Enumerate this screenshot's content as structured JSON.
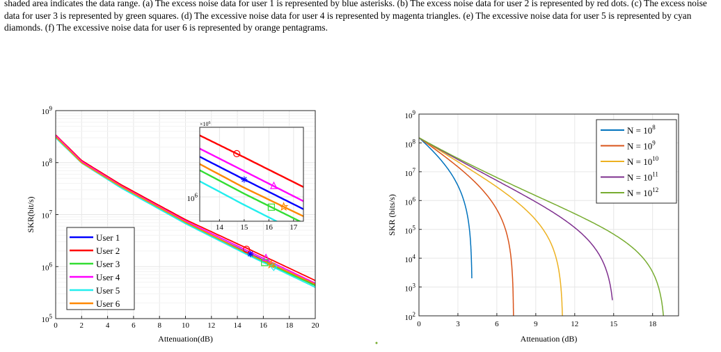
{
  "caption": "shaded area indicates the data range. (a) The excess noise data for user 1 is represented by blue asterisks. (b) The excess noise data for user 2 is represented by red dots. (c) The excess noise data for user 3 is represented by green squares. (d) The excessive noise data for user 4 is represented by magenta triangles. (e) The excessive noise data for user 5 is represented by cyan diamonds. (f) The excessive noise data for user 6 is represented by orange pentagrams.",
  "chart_data": [
    {
      "type": "line",
      "xlabel": "Attenuation(dB)",
      "ylabel": "SKR(bit/s)",
      "xlim": [
        0,
        20
      ],
      "ylim": [
        100000,
        1000000000
      ],
      "yscale": "log",
      "xticks": [
        0,
        2,
        4,
        6,
        8,
        10,
        12,
        14,
        16,
        18,
        20
      ],
      "yticks": [
        {
          "value": 100000,
          "label": "10"
        },
        {
          "value": 1000000,
          "label": "10"
        },
        {
          "value": 10000000,
          "label": "10"
        },
        {
          "value": 100000000,
          "label": "10"
        },
        {
          "value": 1000000000,
          "label": "10"
        }
      ],
      "ytick_exponents": [
        "5",
        "6",
        "7",
        "8",
        "9"
      ],
      "grid": true,
      "legend_position": "lower-left",
      "series": [
        {
          "name": "User 1",
          "color": "#0000ff",
          "x": [
            0,
            2,
            5,
            10,
            15,
            20
          ],
          "y": [
            320000000,
            100000000,
            35000000,
            7000000,
            1750000,
            450000
          ],
          "marker": "asterisk",
          "marker_x": 15,
          "marker_y": 1750000
        },
        {
          "name": "User 2",
          "color": "#ff0000",
          "x": [
            0,
            2,
            5,
            10,
            15,
            20
          ],
          "y": [
            340000000,
            110000000,
            38000000,
            8000000,
            2100000,
            540000
          ],
          "marker": "circle",
          "marker_x": 14.7,
          "marker_y": 2150000
        },
        {
          "name": "User 3",
          "color": "#33dd33",
          "x": [
            0,
            2,
            5,
            10,
            15,
            20
          ],
          "y": [
            310000000,
            100000000,
            34000000,
            6900000,
            1650000,
            430000
          ],
          "marker": "square",
          "marker_x": 16.1,
          "marker_y": 1200000
        },
        {
          "name": "User 4",
          "color": "#ff00ff",
          "x": [
            0,
            2,
            5,
            10,
            15,
            20
          ],
          "y": [
            330000000,
            105000000,
            36000000,
            7500000,
            1900000,
            480000
          ],
          "marker": "triangle",
          "marker_x": 16.2,
          "marker_y": 1450000
        },
        {
          "name": "User 5",
          "color": "#22eeee",
          "x": [
            0,
            2,
            5,
            10,
            15,
            20
          ],
          "y": [
            300000000,
            98000000,
            33000000,
            6700000,
            1580000,
            400000
          ],
          "marker": "diamond",
          "marker_x": 16.8,
          "marker_y": 1000000
        },
        {
          "name": "User 6",
          "color": "#ff8800",
          "x": [
            0,
            2,
            5,
            10,
            15,
            20
          ],
          "y": [
            315000000,
            100000000,
            35000000,
            7200000,
            1700000,
            460000
          ],
          "marker": "pentagram",
          "marker_x": 16.6,
          "marker_y": 1100000
        }
      ],
      "inset": {
        "exponent_label": "×10",
        "exponent": "6",
        "xlim": [
          13.2,
          17.4
        ],
        "xticks": [
          14,
          15,
          16,
          17
        ],
        "ytick_label": "10",
        "ytick_exponent": "6"
      }
    },
    {
      "type": "line",
      "xlabel": "Attenuation (dB)",
      "ylabel": "SKR (bits/s)",
      "xlim": [
        0,
        20
      ],
      "ylim": [
        100,
        1000000000
      ],
      "yscale": "log",
      "xticks": [
        0,
        3,
        6,
        9,
        12,
        15,
        18
      ],
      "yticks": [
        {
          "value": 100,
          "label": "10"
        },
        {
          "value": 1000,
          "label": "10"
        },
        {
          "value": 10000,
          "label": "10"
        },
        {
          "value": 100000,
          "label": "10"
        },
        {
          "value": 1000000,
          "label": "10"
        },
        {
          "value": 10000000,
          "label": "10"
        },
        {
          "value": 100000000,
          "label": "10"
        },
        {
          "value": 1000000000,
          "label": "10"
        }
      ],
      "ytick_exponents": [
        "2",
        "3",
        "4",
        "5",
        "6",
        "7",
        "8",
        "9"
      ],
      "grid": true,
      "legend_position": "top-right",
      "series": [
        {
          "name": "N = 10",
          "name_exponent": "8",
          "color": "#0072bd",
          "cutoff": 4.1,
          "end_value": 2000
        },
        {
          "name": "N = 10",
          "name_exponent": "9",
          "color": "#d95319",
          "cutoff": 7.3,
          "end_value": 100
        },
        {
          "name": "N = 10",
          "name_exponent": "10",
          "color": "#edb120",
          "cutoff": 11.1,
          "end_value": 100
        },
        {
          "name": "N = 10",
          "name_exponent": "11",
          "color": "#7e2f8e",
          "cutoff": 15.1,
          "end_value": 350
        },
        {
          "name": "N = 10",
          "name_exponent": "12",
          "color": "#77ac30",
          "cutoff": 19.0,
          "end_value": 100
        }
      ]
    }
  ]
}
